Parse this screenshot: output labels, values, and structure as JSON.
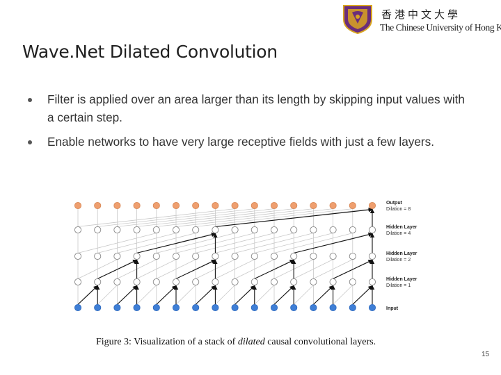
{
  "header": {
    "logo_chinese": "香港中文大學",
    "logo_english": "The Chinese University of Hong Kong"
  },
  "slide": {
    "title": "Wave.Net Dilated Convolution",
    "bullets": [
      "Filter is applied over an area larger than its length by skipping input values with a certain step.",
      "Enable networks to have very large receptive fields with just a few layers."
    ],
    "page_number": "15"
  },
  "figure": {
    "layers": [
      {
        "title": "Output",
        "dilation": "Dilation = 8",
        "color": "#ef9f6f"
      },
      {
        "title": "Hidden Layer",
        "dilation": "Dilation = 4",
        "color": "#ffffff"
      },
      {
        "title": "Hidden Layer",
        "dilation": "Dilation = 2",
        "color": "#ffffff"
      },
      {
        "title": "Hidden Layer",
        "dilation": "Dilation = 1",
        "color": "#ffffff"
      },
      {
        "title": "Input",
        "dilation": "",
        "color": "#3f7fd6"
      }
    ],
    "nodes_per_layer": 16,
    "dilations": [
      8,
      4,
      2,
      1
    ],
    "caption_prefix": "Figure 3: Visualization of a stack of ",
    "caption_emphasis": "dilated",
    "caption_suffix": " causal convolutional layers."
  },
  "colors": {
    "output_node": "#ef9f6f",
    "input_node": "#3f7fd6",
    "hidden_node": "#ffffff",
    "crest_purple": "#6b2d7a",
    "crest_gold": "#d9a520"
  }
}
